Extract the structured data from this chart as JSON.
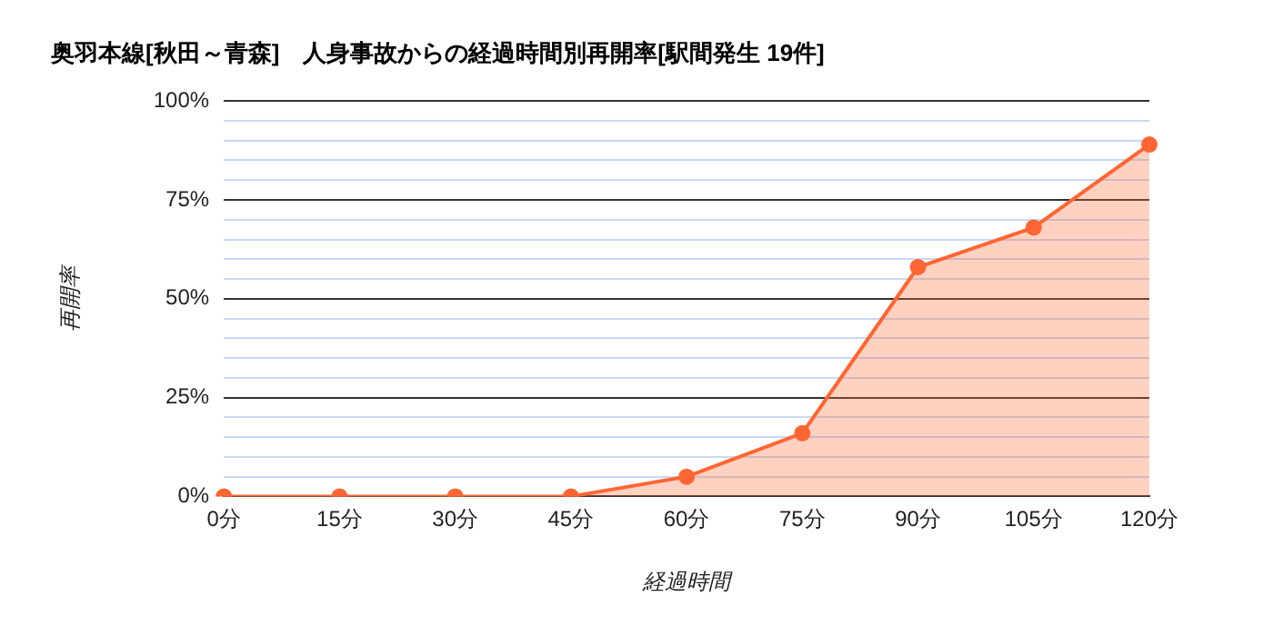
{
  "chart_data": {
    "type": "area",
    "title": "奥羽本線[秋田～青森]　人身事故からの経過時間別再開率[駅間発生 19件]",
    "xlabel": "経過時間",
    "ylabel": "再開率",
    "categories": [
      "0分",
      "15分",
      "30分",
      "45分",
      "60分",
      "75分",
      "90分",
      "105分",
      "120分"
    ],
    "series": [
      {
        "color": "#ff6633",
        "values": [
          0,
          0,
          0,
          0,
          5,
          16,
          58,
          68,
          89
        ]
      }
    ],
    "ylim": [
      0,
      100
    ],
    "yticks": [
      {
        "value": 0,
        "label": "0%"
      },
      {
        "value": 5,
        "label": null
      },
      {
        "value": 10,
        "label": null
      },
      {
        "value": 15,
        "label": null
      },
      {
        "value": 20,
        "label": null
      },
      {
        "value": 25,
        "label": "25%"
      },
      {
        "value": 30,
        "label": null
      },
      {
        "value": 35,
        "label": null
      },
      {
        "value": 40,
        "label": null
      },
      {
        "value": 45,
        "label": null
      },
      {
        "value": 50,
        "label": "50%"
      },
      {
        "value": 55,
        "label": null
      },
      {
        "value": 60,
        "label": null
      },
      {
        "value": 65,
        "label": null
      },
      {
        "value": 70,
        "label": null
      },
      {
        "value": 75,
        "label": "75%"
      },
      {
        "value": 80,
        "label": null
      },
      {
        "value": 85,
        "label": null
      },
      {
        "value": 90,
        "label": null
      },
      {
        "value": 95,
        "label": null
      },
      {
        "value": 100,
        "label": "100%"
      }
    ],
    "grid": "y",
    "legend": false,
    "marker": "circle",
    "line_style": "solid"
  }
}
